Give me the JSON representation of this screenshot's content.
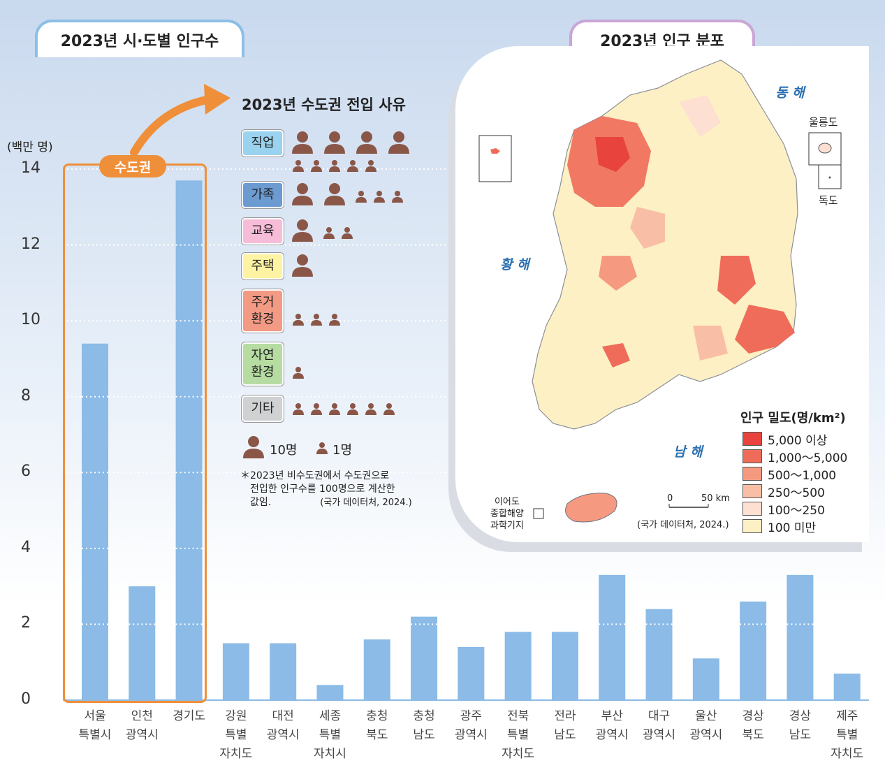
{
  "titles": {
    "left": "2023년 시·도별 인구수",
    "right": "2023년 인구 분포"
  },
  "unit": "(백만 명)",
  "sudo_label": "수도권",
  "reasons": {
    "title": "2023년 수도권 전입 사유",
    "items": [
      {
        "label": "직업",
        "color": "#9ad3ef",
        "big": 4,
        "small": 5
      },
      {
        "label": "가족",
        "color": "#6b9bd1",
        "big": 2,
        "small": 3
      },
      {
        "label": "교육",
        "color": "#f7bcd8",
        "big": 1,
        "small": 2
      },
      {
        "label": "주택",
        "color": "#fdf3a3",
        "big": 1,
        "small": 0
      },
      {
        "label": "주거\n환경",
        "color": "#f39a85",
        "big": 0,
        "small": 3
      },
      {
        "label": "자연\n환경",
        "color": "#b6dca1",
        "big": 0,
        "small": 1
      },
      {
        "label": "기타",
        "color": "#cfd1d3",
        "big": 0,
        "small": 6
      }
    ],
    "legend_big": "10명",
    "legend_small": "1명",
    "note_line1": "2023년  비수도권에서  수도권으로",
    "note_line2": "전입한 인구수를 100명으로 계산한",
    "note_line3": "값임.",
    "note_source": "(국가 데이터처, 2024.)"
  },
  "map": {
    "legend_title": "인구 밀도(명/km²)",
    "legend": [
      {
        "label": "5,000 이상",
        "color": "#e8433c"
      },
      {
        "label": "1,000～5,000",
        "color": "#f06c5a"
      },
      {
        "label": "500～1,000",
        "color": "#f59a80"
      },
      {
        "label": "250～500",
        "color": "#f9bfa6"
      },
      {
        "label": "100～250",
        "color": "#fde0d2"
      },
      {
        "label": "100 미만",
        "color": "#fdf0c4"
      }
    ],
    "seas": {
      "east": "동 해",
      "west": "황 해",
      "south": "남 해"
    },
    "islands": {
      "ulleung": "울릉도",
      "dokdo": "독도"
    },
    "ieodo_line1": "이어도",
    "ieodo_line2": "종합해양",
    "ieodo_line3": "과학기지",
    "scale_0": "0",
    "scale_50": "50 km",
    "source": "(국가 데이터처, 2024.)"
  },
  "chart_data": {
    "type": "bar",
    "ylabel": "(백만 명)",
    "ylim": [
      0,
      14
    ],
    "yticks": [
      "0",
      "2",
      "4",
      "6",
      "8",
      "10",
      "12",
      "14"
    ],
    "categories": [
      "서울\n특별시",
      "인천\n광역시",
      "경기도",
      "강원\n특별\n자치도",
      "대전\n광역시",
      "세종\n특별\n자치시",
      "충청\n북도",
      "충청\n남도",
      "광주\n광역시",
      "전북\n특별\n자치도",
      "전라\n남도",
      "부산\n광역시",
      "대구\n광역시",
      "울산\n광역시",
      "경상\n북도",
      "경상\n남도",
      "제주\n특별\n자치도"
    ],
    "values": [
      9.4,
      3.0,
      13.7,
      1.5,
      1.5,
      0.4,
      1.6,
      2.2,
      1.4,
      1.8,
      1.8,
      3.3,
      2.4,
      1.1,
      2.6,
      3.3,
      0.7
    ],
    "color": "#8bbbe6",
    "grid": true
  }
}
